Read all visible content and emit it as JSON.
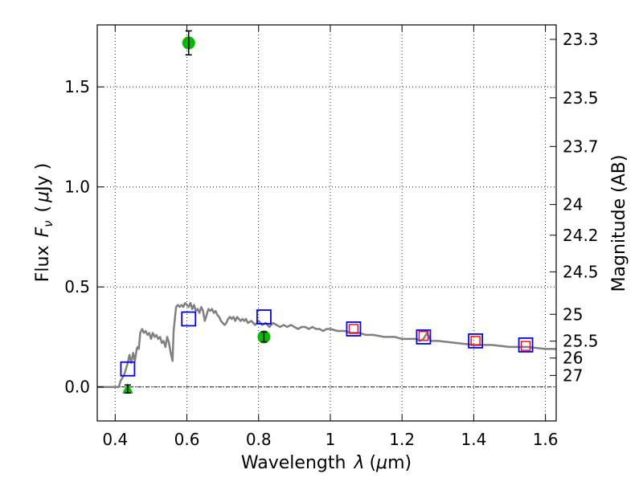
{
  "chart_data": {
    "type": "scatter",
    "xlabel_text": "Wavelength",
    "xlabel_symbol": "λ",
    "xlabel_unit_open": "(",
    "xlabel_unit_mu": "μ",
    "xlabel_unit_rest": "m)",
    "ylabel_text": "Flux",
    "ylabel_symbol": "F",
    "ylabel_sub": "ν",
    "ylabel_unit_open": "(",
    "ylabel_unit_mu": "μ",
    "ylabel_unit_rest": "Jy )",
    "y2label": "Magnitude (AB)",
    "xlim": [
      0.35,
      1.63
    ],
    "ylim": [
      -0.17,
      1.81
    ],
    "grid": true,
    "xticks": [
      {
        "value": 0.4,
        "label": "0.4"
      },
      {
        "value": 0.6,
        "label": "0.6"
      },
      {
        "value": 0.8,
        "label": "0.8"
      },
      {
        "value": 1.0,
        "label": "1"
      },
      {
        "value": 1.2,
        "label": "1.2"
      },
      {
        "value": 1.4,
        "label": "1.4"
      },
      {
        "value": 1.6,
        "label": "1.6"
      }
    ],
    "yticks": [
      {
        "value": 0.0,
        "label": "0.0"
      },
      {
        "value": 0.5,
        "label": "0.5"
      },
      {
        "value": 1.0,
        "label": "1.0"
      },
      {
        "value": 1.5,
        "label": "1.5"
      }
    ],
    "y2ticks": [
      {
        "value": 23.3,
        "label": "23.3"
      },
      {
        "value": 23.5,
        "label": "23.5"
      },
      {
        "value": 23.7,
        "label": "23.7"
      },
      {
        "value": 24,
        "label": "24"
      },
      {
        "value": 24.2,
        "label": "24.2"
      },
      {
        "value": 24.5,
        "label": "24.5"
      },
      {
        "value": 25,
        "label": "25"
      },
      {
        "value": 25.5,
        "label": "25.5"
      },
      {
        "value": 26,
        "label": "26"
      },
      {
        "value": 27,
        "label": "27"
      }
    ],
    "zero_line": 0.0,
    "model_sed": {
      "name": "model SED",
      "color": "#808080",
      "x": [
        0.35,
        0.41,
        0.415,
        0.425,
        0.43,
        0.435,
        0.44,
        0.445,
        0.45,
        0.455,
        0.46,
        0.463,
        0.466,
        0.47,
        0.475,
        0.48,
        0.485,
        0.49,
        0.495,
        0.5,
        0.505,
        0.51,
        0.515,
        0.52,
        0.525,
        0.53,
        0.535,
        0.54,
        0.545,
        0.55,
        0.555,
        0.56,
        0.563,
        0.567,
        0.57,
        0.575,
        0.58,
        0.585,
        0.59,
        0.595,
        0.6,
        0.605,
        0.61,
        0.615,
        0.62,
        0.625,
        0.63,
        0.635,
        0.64,
        0.645,
        0.65,
        0.655,
        0.66,
        0.665,
        0.67,
        0.675,
        0.68,
        0.685,
        0.69,
        0.695,
        0.7,
        0.705,
        0.71,
        0.715,
        0.72,
        0.725,
        0.73,
        0.735,
        0.74,
        0.745,
        0.75,
        0.755,
        0.76,
        0.765,
        0.77,
        0.78,
        0.79,
        0.8,
        0.81,
        0.82,
        0.83,
        0.84,
        0.85,
        0.86,
        0.87,
        0.88,
        0.89,
        0.9,
        0.91,
        0.92,
        0.93,
        0.94,
        0.95,
        0.96,
        0.97,
        0.98,
        0.99,
        1.0,
        1.02,
        1.04,
        1.06,
        1.08,
        1.1,
        1.12,
        1.15,
        1.18,
        1.2,
        1.22,
        1.24,
        1.25,
        1.26,
        1.27,
        1.275,
        1.28,
        1.29,
        1.3,
        1.35,
        1.4,
        1.45,
        1.5,
        1.55,
        1.6,
        1.63
      ],
      "y": [
        0.0,
        0.0,
        0.03,
        0.06,
        0.09,
        0.12,
        0.16,
        0.12,
        0.17,
        0.13,
        0.19,
        0.2,
        0.19,
        0.27,
        0.29,
        0.27,
        0.28,
        0.26,
        0.27,
        0.24,
        0.27,
        0.25,
        0.26,
        0.24,
        0.25,
        0.22,
        0.23,
        0.2,
        0.25,
        0.22,
        0.17,
        0.13,
        0.28,
        0.35,
        0.4,
        0.41,
        0.4,
        0.41,
        0.4,
        0.42,
        0.41,
        0.4,
        0.42,
        0.39,
        0.41,
        0.38,
        0.39,
        0.37,
        0.4,
        0.38,
        0.33,
        0.36,
        0.39,
        0.38,
        0.39,
        0.37,
        0.38,
        0.36,
        0.35,
        0.33,
        0.32,
        0.31,
        0.32,
        0.34,
        0.35,
        0.34,
        0.35,
        0.33,
        0.35,
        0.34,
        0.33,
        0.34,
        0.33,
        0.34,
        0.32,
        0.33,
        0.31,
        0.33,
        0.31,
        0.32,
        0.3,
        0.32,
        0.31,
        0.3,
        0.31,
        0.3,
        0.31,
        0.3,
        0.29,
        0.3,
        0.3,
        0.29,
        0.3,
        0.29,
        0.29,
        0.28,
        0.29,
        0.29,
        0.28,
        0.28,
        0.27,
        0.27,
        0.26,
        0.26,
        0.25,
        0.25,
        0.24,
        0.24,
        0.24,
        0.23,
        0.24,
        0.27,
        0.25,
        0.23,
        0.23,
        0.23,
        0.22,
        0.21,
        0.21,
        0.2,
        0.2,
        0.19,
        0.19
      ]
    },
    "model_points": {
      "name": "model photometry",
      "color": "#0000ff",
      "points": [
        {
          "x": 0.435,
          "y": 0.09
        },
        {
          "x": 0.605,
          "y": 0.34
        },
        {
          "x": 0.815,
          "y": 0.35
        },
        {
          "x": 1.065,
          "y": 0.29
        },
        {
          "x": 1.26,
          "y": 0.25
        },
        {
          "x": 1.405,
          "y": 0.23
        },
        {
          "x": 1.545,
          "y": 0.21
        }
      ]
    },
    "obs_points_small": {
      "name": "observed photometry (NIR)",
      "color": "#ff0000",
      "points": [
        {
          "x": 1.065,
          "y": 0.29
        },
        {
          "x": 1.26,
          "y": 0.255
        },
        {
          "x": 1.405,
          "y": 0.23
        },
        {
          "x": 1.545,
          "y": 0.205
        }
      ]
    },
    "detections": {
      "name": "detections",
      "color": "#00bb00",
      "points": [
        {
          "x": 0.605,
          "y": 1.72,
          "err": 0.06
        },
        {
          "x": 0.815,
          "y": 0.25,
          "err": 0.025
        }
      ]
    },
    "upper_limits": {
      "name": "upper limit",
      "color": "#00bb00",
      "points": [
        {
          "x": 0.435,
          "y": -0.01,
          "err": 0.02
        }
      ]
    }
  }
}
